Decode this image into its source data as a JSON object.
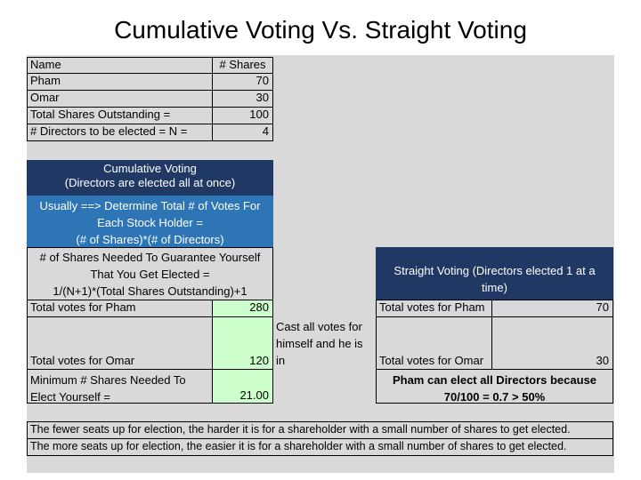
{
  "title": "Cumulative Voting Vs. Straight Voting",
  "top_table": {
    "header_name": "Name",
    "header_shares": "# Shares",
    "rows": [
      {
        "label": "Pham",
        "value": "70"
      },
      {
        "label": "Omar",
        "value": "30"
      },
      {
        "label": "Total Shares Outstanding =",
        "value": "100"
      },
      {
        "label": "# Directors to be elected = N =",
        "value": "4"
      }
    ]
  },
  "cumulative": {
    "header_line1": "Cumulative Voting",
    "header_line2": "(Directors are elected all at once)",
    "usually_line1": "Usually ==> Determine Total # of Votes For",
    "usually_line2": "Each Stock Holder =",
    "usually_line3": "(# of Shares)*(# of Directors)",
    "needed_line1": "# of Shares Needed To Guarantee Yourself",
    "needed_line2": "That You Get Elected =",
    "needed_line3": "1/(N+1)*(Total Shares Outstanding)+1",
    "pham_label": "Total votes for Pham",
    "pham_value": "280",
    "omar_label": "Total votes for Omar",
    "omar_value": "120",
    "note": "Cast all votes for himself and he is in",
    "min_label_line1": "Minimum # Shares Needed To",
    "min_label_line2": "Elect Yourself =",
    "min_value": "21.00"
  },
  "straight": {
    "header": "Straight Voting (Directors elected 1 at a time)",
    "pham_label": "Total votes for Pham",
    "pham_value": "70",
    "omar_label": "Total votes for Omar",
    "omar_value": "30",
    "conclusion_line1": "Pham can elect all Directors because",
    "conclusion_line2": "70/100 = 0.7 > 50%"
  },
  "footer": {
    "line1": "The fewer seats up for election, the harder it is for a shareholder with a small number of shares to get elected.",
    "line2": "The more seats up for election, the easier it is for a shareholder with a small number of shares to get elected."
  }
}
